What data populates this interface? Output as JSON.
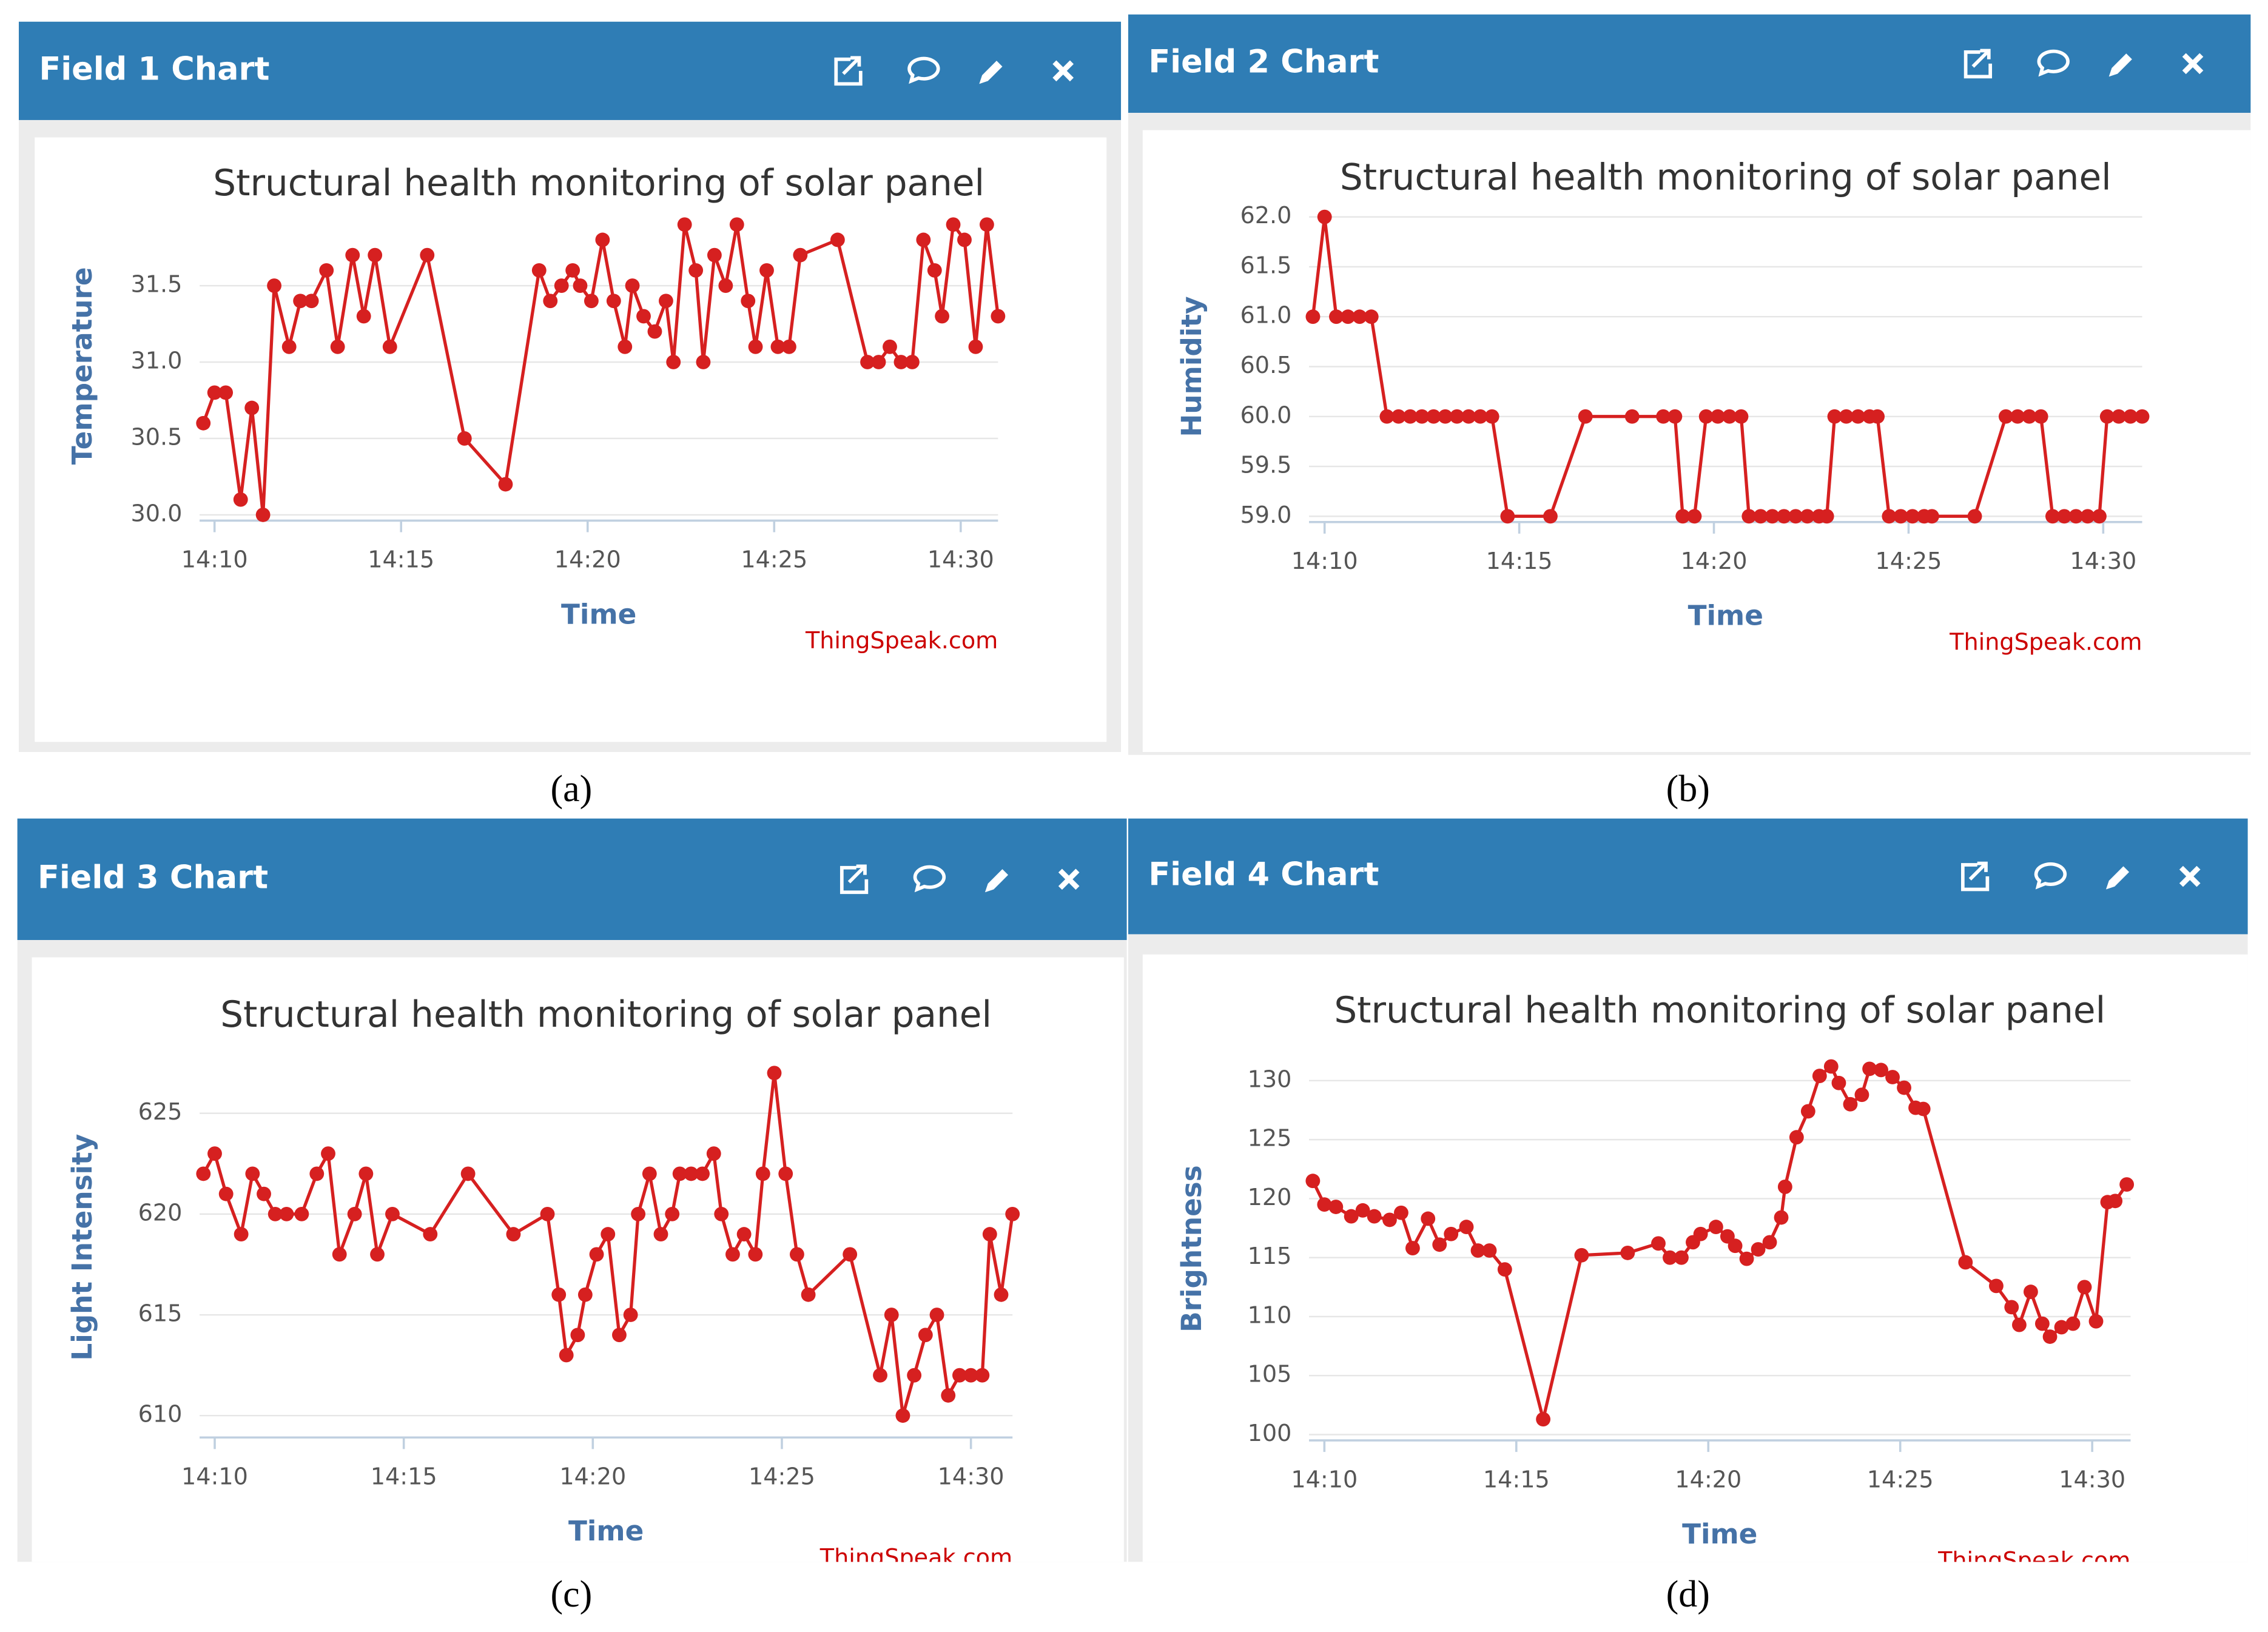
{
  "chart_data": [
    {
      "type": "line",
      "panel": "Field 1 Chart",
      "title": "Structural health monitoring of solar panel",
      "xlabel": "Time",
      "ylabel": "Temperature",
      "credit": "ThingSpeak.com",
      "caption": "(a)",
      "color": "#d62020",
      "grid": true,
      "x": [
        849.7,
        850.0,
        850.3,
        850.7,
        851.0,
        851.3,
        851.6,
        852.0,
        852.3,
        852.6,
        853.0,
        853.3,
        853.7,
        854.0,
        854.3,
        854.7,
        855.7,
        856.7,
        857.8,
        858.7,
        859.0,
        859.3,
        859.6,
        859.8,
        860.1,
        860.4,
        860.7,
        861.0,
        861.2,
        861.5,
        861.8,
        862.1,
        862.3,
        862.6,
        862.9,
        863.1,
        863.4,
        863.7,
        864.0,
        864.3,
        864.5,
        864.8,
        865.1,
        865.4,
        865.7,
        866.7,
        867.5,
        867.8,
        868.1,
        868.4,
        868.7,
        869.0,
        869.3,
        869.5,
        869.8,
        870.1,
        870.4,
        870.7,
        871.0
      ],
      "values": [
        30.6,
        30.8,
        30.8,
        30.1,
        30.7,
        30.0,
        31.5,
        31.1,
        31.4,
        31.4,
        31.6,
        31.1,
        31.7,
        31.3,
        31.7,
        31.1,
        31.7,
        30.5,
        30.2,
        31.6,
        31.4,
        31.5,
        31.6,
        31.5,
        31.4,
        31.8,
        31.4,
        31.1,
        31.5,
        31.3,
        31.2,
        31.4,
        31.0,
        31.9,
        31.6,
        31.0,
        31.7,
        31.5,
        31.9,
        31.4,
        31.1,
        31.6,
        31.1,
        31.1,
        31.7,
        31.8,
        31.0,
        31.0,
        31.1,
        31.0,
        31.0,
        31.8,
        31.6,
        31.3,
        31.9,
        31.8,
        31.1,
        31.9,
        31.3
      ],
      "xlim": [
        849.6,
        871.0
      ],
      "ylim": [
        30.0,
        31.95
      ],
      "xticks": [
        {
          "value": 850,
          "label": "14:10"
        },
        {
          "value": 855,
          "label": "14:15"
        },
        {
          "value": 860,
          "label": "14:20"
        },
        {
          "value": 865,
          "label": "14:25"
        },
        {
          "value": 870,
          "label": "14:30"
        }
      ],
      "yticks": [
        {
          "value": 30,
          "label": "30.0"
        },
        30.5,
        {
          "value": 31,
          "label": "31.0"
        },
        31.5
      ]
    },
    {
      "type": "line",
      "panel": "Field 2 Chart",
      "title": "Structural health monitoring of solar panel",
      "xlabel": "Time",
      "ylabel": "Humidity",
      "credit": "ThingSpeak.com",
      "caption": "(b)",
      "color": "#d62020",
      "grid": true,
      "x": [
        849.7,
        850.0,
        850.3,
        850.6,
        850.9,
        851.2,
        851.6,
        851.9,
        852.2,
        852.5,
        852.8,
        853.1,
        853.4,
        853.7,
        854.0,
        854.3,
        854.7,
        855.8,
        856.7,
        857.9,
        858.7,
        859.0,
        859.2,
        859.5,
        859.8,
        860.1,
        860.4,
        860.7,
        860.9,
        861.2,
        861.5,
        861.8,
        862.1,
        862.4,
        862.7,
        862.9,
        863.1,
        863.4,
        863.7,
        864.0,
        864.2,
        864.5,
        864.8,
        865.1,
        865.4,
        865.6,
        866.7,
        867.5,
        867.8,
        868.1,
        868.4,
        868.7,
        869.0,
        869.3,
        869.6,
        869.9,
        870.1,
        870.4,
        870.7,
        871.0
      ],
      "values": [
        61,
        62,
        61,
        61,
        61,
        61,
        60,
        60,
        60,
        60,
        60,
        60,
        60,
        60,
        60,
        60,
        59,
        59,
        60,
        60,
        60,
        60,
        59,
        59,
        60,
        60,
        60,
        60,
        59,
        59,
        59,
        59,
        59,
        59,
        59,
        59,
        60,
        60,
        60,
        60,
        60,
        59,
        59,
        59,
        59,
        59,
        59,
        60,
        60,
        60,
        60,
        59,
        59,
        59,
        59,
        59,
        60,
        60,
        60,
        60
      ],
      "xlim": [
        849.6,
        871.0
      ],
      "ylim": [
        59,
        62
      ],
      "xticks": [
        {
          "value": 850,
          "label": "14:10"
        },
        {
          "value": 855,
          "label": "14:15"
        },
        {
          "value": 860,
          "label": "14:20"
        },
        {
          "value": 865,
          "label": "14:25"
        },
        {
          "value": 870,
          "label": "14:30"
        }
      ],
      "yticks": [
        {
          "value": 59,
          "label": "59.0"
        },
        59.5,
        {
          "value": 60,
          "label": "60.0"
        },
        60.5,
        {
          "value": 61,
          "label": "61.0"
        },
        61.5,
        {
          "value": 62,
          "label": "62.0"
        }
      ]
    },
    {
      "type": "line",
      "panel": "Field 3 Chart",
      "title": "Structural health monitoring of solar panel",
      "xlabel": "Time",
      "ylabel": "Light Intensity",
      "credit": "ThingSpeak.com",
      "caption": "(c)",
      "color": "#d62020",
      "grid": true,
      "x": [
        849.7,
        850.0,
        850.3,
        850.7,
        851.0,
        851.3,
        851.6,
        851.9,
        852.3,
        852.7,
        853.0,
        853.3,
        853.7,
        854.0,
        854.3,
        854.7,
        855.7,
        856.7,
        857.9,
        858.8,
        859.1,
        859.3,
        859.6,
        859.8,
        860.1,
        860.4,
        860.7,
        861.0,
        861.2,
        861.5,
        861.8,
        862.1,
        862.3,
        862.6,
        862.9,
        863.2,
        863.4,
        863.7,
        864.0,
        864.3,
        864.5,
        864.8,
        865.1,
        865.4,
        865.7,
        866.8,
        867.6,
        867.9,
        868.2,
        868.5,
        868.8,
        869.1,
        869.4,
        869.7,
        870.0,
        870.3,
        870.5,
        870.8,
        871.1
      ],
      "values": [
        622,
        623,
        621,
        619,
        622,
        621,
        620,
        620,
        620,
        622,
        623,
        618,
        620,
        622,
        618,
        620,
        619,
        622,
        619,
        620,
        616,
        613,
        614,
        616,
        618,
        619,
        614,
        615,
        620,
        622,
        619,
        620,
        622,
        622,
        622,
        623,
        620,
        618,
        619,
        618,
        622,
        627,
        622,
        618,
        616,
        618,
        612,
        615,
        610,
        612,
        614,
        615,
        611,
        612,
        612,
        612,
        619,
        616,
        620
      ],
      "xlim": [
        849.6,
        871.1
      ],
      "ylim": [
        609.2,
        627.5
      ],
      "xticks": [
        {
          "value": 850,
          "label": "14:10"
        },
        {
          "value": 855,
          "label": "14:15"
        },
        {
          "value": 860,
          "label": "14:20"
        },
        {
          "value": 865,
          "label": "14:25"
        },
        {
          "value": 870,
          "label": "14:30"
        }
      ],
      "yticks": [
        610,
        615,
        620,
        625
      ]
    },
    {
      "type": "line",
      "panel": "Field 4 Chart",
      "title": "Structural health monitoring of solar panel",
      "xlabel": "Time",
      "ylabel": "Brightness",
      "credit": "ThingSpeak.com",
      "caption": "(d)",
      "color": "#d62020",
      "grid": true,
      "x": [
        849.7,
        850.0,
        850.3,
        850.7,
        851.0,
        851.3,
        851.7,
        852.0,
        852.3,
        852.7,
        853.0,
        853.3,
        853.7,
        854.0,
        854.3,
        854.7,
        855.7,
        856.7,
        857.9,
        858.7,
        859.0,
        859.3,
        859.6,
        859.8,
        860.2,
        860.5,
        860.7,
        861.0,
        861.3,
        861.6,
        861.9,
        862.0,
        862.3,
        862.6,
        862.9,
        863.2,
        863.4,
        863.7,
        864.0,
        864.2,
        864.5,
        864.8,
        865.1,
        865.4,
        865.6,
        866.7,
        867.5,
        867.9,
        868.1,
        868.4,
        868.7,
        868.9,
        869.2,
        869.5,
        869.8,
        870.1,
        870.4,
        870.6,
        870.9
      ],
      "values": [
        121.5,
        119.5,
        119.3,
        118.5,
        119,
        118.5,
        118.2,
        118.8,
        115.8,
        118.3,
        116.1,
        117,
        117.6,
        115.6,
        115.6,
        114,
        101.3,
        115.2,
        115.4,
        116.2,
        115,
        115,
        116.3,
        117,
        117.6,
        116.8,
        116,
        114.9,
        115.7,
        116.3,
        118.4,
        121,
        125.2,
        127.4,
        130.4,
        131.2,
        129.8,
        128,
        128.8,
        131,
        130.9,
        130.3,
        129.4,
        127.7,
        127.6,
        114.6,
        112.6,
        110.8,
        109.3,
        112.1,
        109.4,
        108.3,
        109.1,
        109.4,
        112.5,
        109.6,
        119.7,
        119.8,
        121.2
      ],
      "xlim": [
        849.6,
        871.0
      ],
      "ylim": [
        100,
        131.5
      ],
      "xticks": [
        {
          "value": 850,
          "label": "14:10"
        },
        {
          "value": 855,
          "label": "14:15"
        },
        {
          "value": 860,
          "label": "14:20"
        },
        {
          "value": 865,
          "label": "14:25"
        },
        {
          "value": 870,
          "label": "14:30"
        }
      ],
      "yticks": [
        100,
        105,
        110,
        115,
        120,
        125,
        130
      ]
    }
  ]
}
